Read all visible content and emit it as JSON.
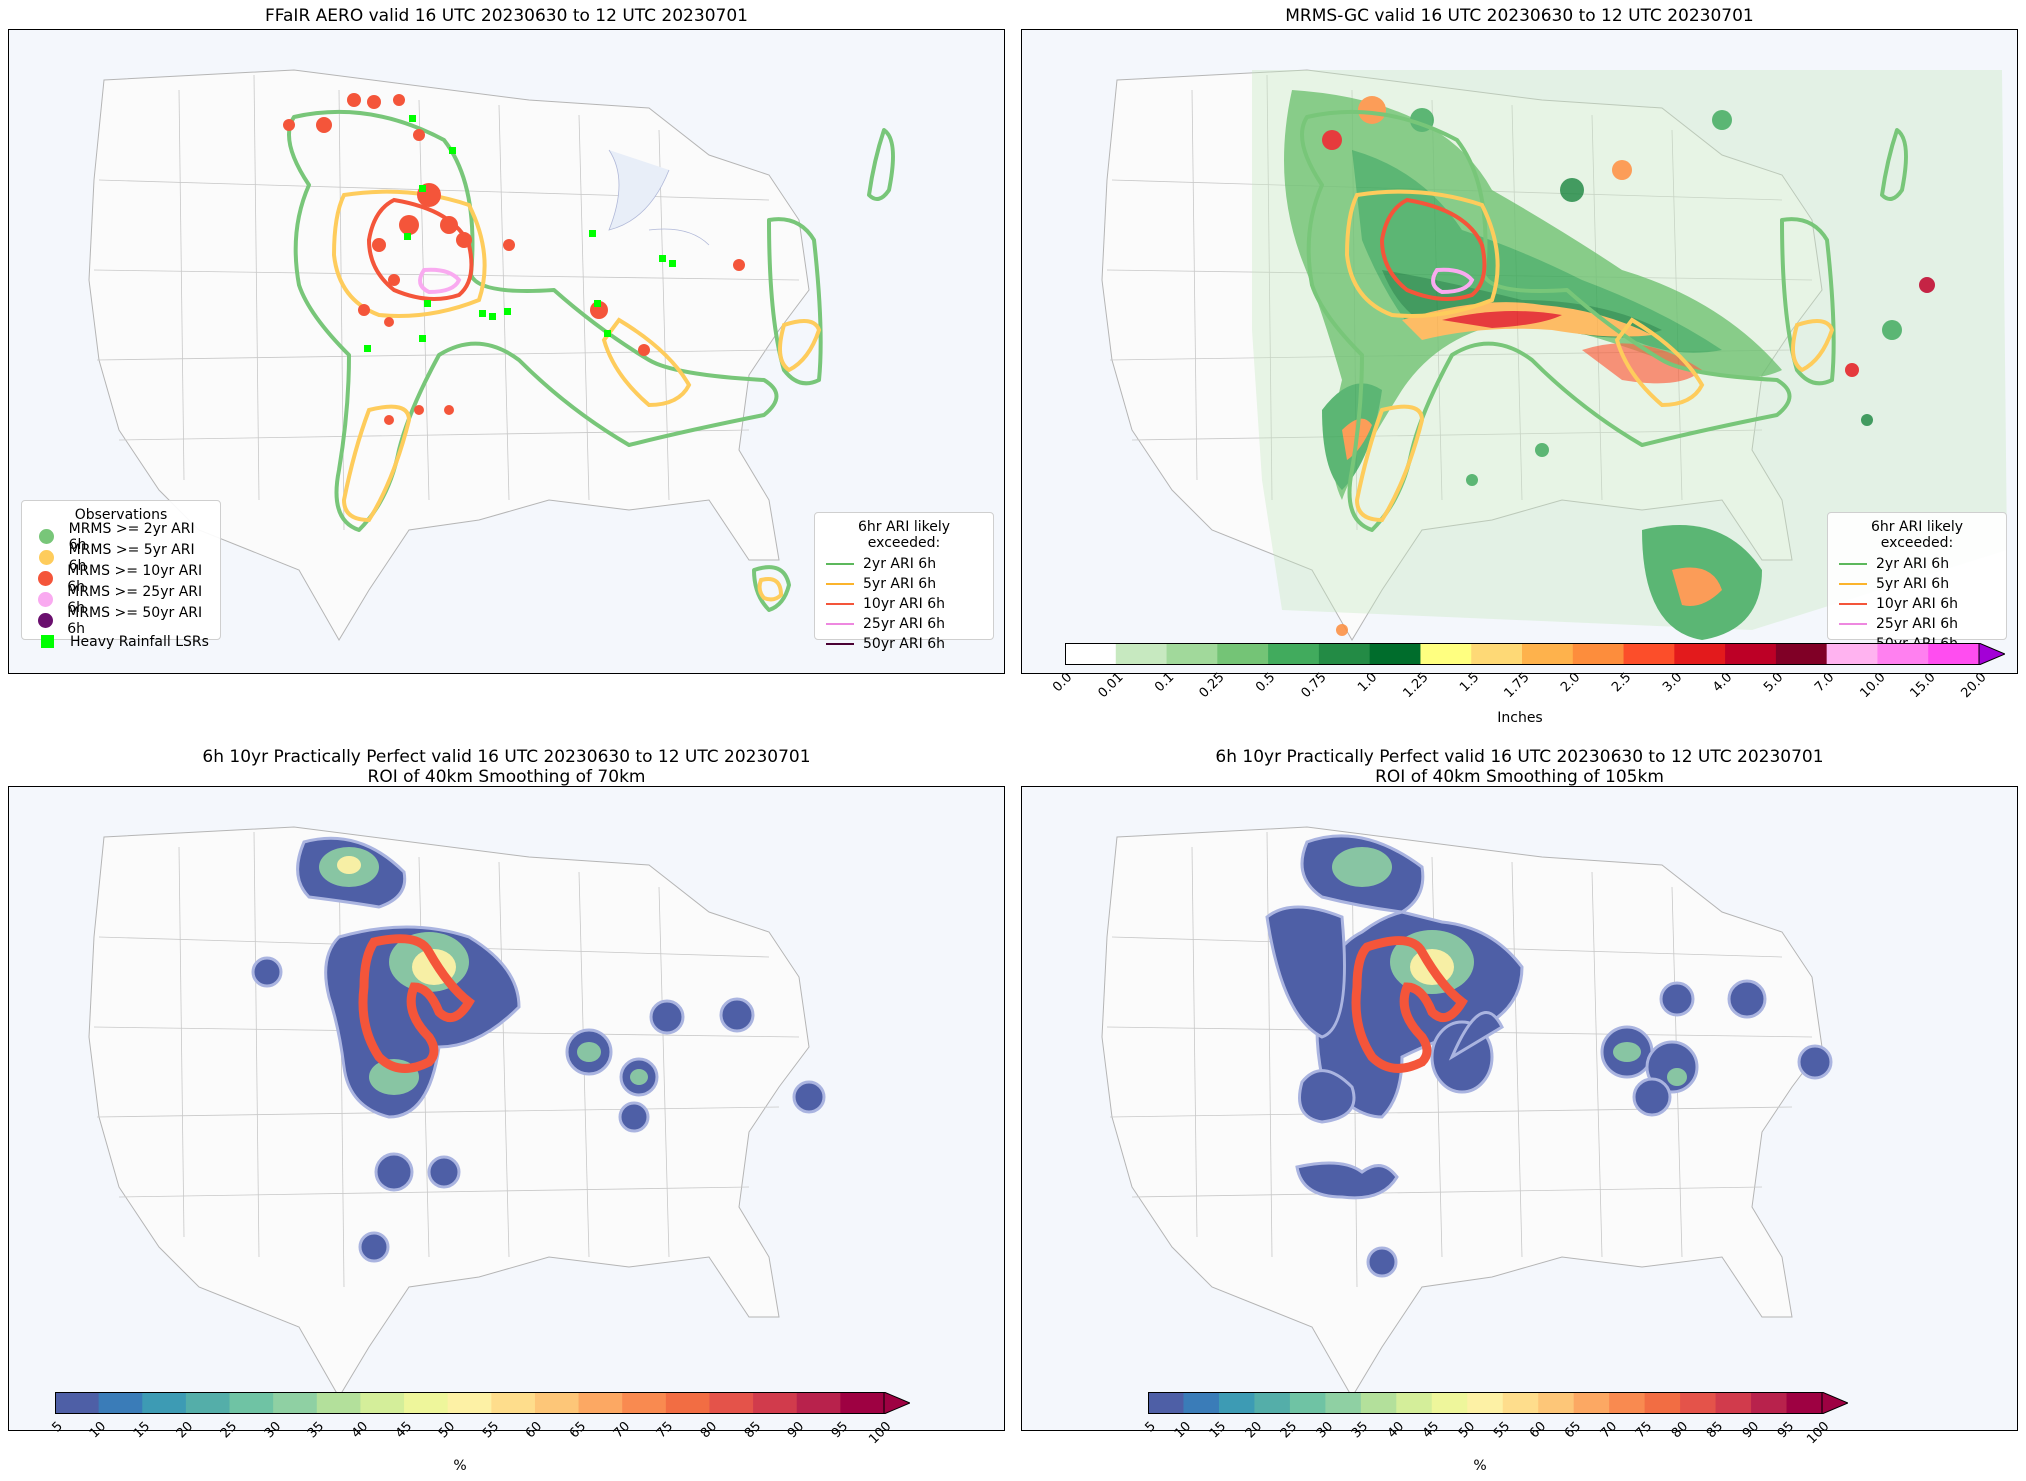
{
  "panels": [
    {
      "id": "p1",
      "title": "FFaIR AERO valid 16 UTC 20230630 to 12 UTC 20230701"
    },
    {
      "id": "p2",
      "title": "MRMS-GC valid 16 UTC 20230630 to 12 UTC 20230701"
    },
    {
      "id": "p3",
      "title": "6h 10yr Practically Perfect valid 16 UTC 20230630 to 12 UTC 20230701\nROI of 40km Smoothing of 70km"
    },
    {
      "id": "p4",
      "title": "6h 10yr Practically Perfect valid 16 UTC 20230630 to 12 UTC 20230701\nROI of 40km Smoothing of 105km"
    }
  ],
  "observations_legend": {
    "title": "Observations",
    "items": [
      {
        "label": "MRMS >= 2yr ARI 6h",
        "color": "#78c679",
        "shape": "circle"
      },
      {
        "label": "MRMS >= 5yr ARI 6h",
        "color": "#fecc5c",
        "shape": "circle"
      },
      {
        "label": "MRMS >= 10yr ARI 6h",
        "color": "#f4553a",
        "shape": "circle"
      },
      {
        "label": "MRMS >= 25yr ARI 6h",
        "color": "#f9aaf0",
        "shape": "circle"
      },
      {
        "label": "MRMS >= 50yr ARI 6h",
        "color": "#6a0f6e",
        "shape": "circle"
      },
      {
        "label": "Heavy Rainfall LSRs",
        "color": "#00ff00",
        "shape": "square"
      }
    ]
  },
  "ari_legend": {
    "title": "6hr ARI likely exceeded:",
    "items": [
      {
        "label": "2yr ARI 6h",
        "color": "#5cb85c"
      },
      {
        "label": "5yr ARI 6h",
        "color": "#fbb42c"
      },
      {
        "label": "10yr ARI 6h",
        "color": "#f4553a"
      },
      {
        "label": "25yr ARI 6h",
        "color": "#ee88e0"
      },
      {
        "label": "50yr ARI 6h",
        "color": "#4a0033"
      }
    ]
  },
  "precip_colorbar": {
    "label": "Inches",
    "ticks": [
      "0.0",
      "0.01",
      "0.1",
      "0.25",
      "0.5",
      "0.75",
      "1.0",
      "1.25",
      "1.5",
      "1.75",
      "2.0",
      "2.5",
      "3.0",
      "4.0",
      "5.0",
      "7.0",
      "10.0",
      "15.0",
      "20.0"
    ],
    "colors": [
      "#ffffff",
      "#c7e9c0",
      "#a1d99b",
      "#74c476",
      "#41ab5d",
      "#238b45",
      "#006d2c",
      "#ffff80",
      "#fed976",
      "#feb24c",
      "#fd8d3c",
      "#fc4e2a",
      "#e31a1c",
      "#bd0026",
      "#800026",
      "#ffb3f0",
      "#ff80f0",
      "#ff4df0",
      "#e600e6",
      "#a300d6"
    ]
  },
  "percent_colorbar": {
    "label": "%",
    "ticks": [
      "5",
      "10",
      "15",
      "20",
      "25",
      "30",
      "35",
      "40",
      "45",
      "50",
      "55",
      "60",
      "65",
      "70",
      "75",
      "80",
      "85",
      "90",
      "95",
      "100"
    ],
    "colors": [
      "#4e5fa6",
      "#3a7cb8",
      "#3d9bb4",
      "#54aea9",
      "#6fc3a4",
      "#8fd0a3",
      "#b3e09b",
      "#d4ee9a",
      "#eef69b",
      "#fdf1a5",
      "#fedd8c",
      "#fdc678",
      "#fca863",
      "#f98a50",
      "#f26d43",
      "#e4534a",
      "#d13b4c",
      "#b8224c",
      "#9e0142"
    ]
  }
}
